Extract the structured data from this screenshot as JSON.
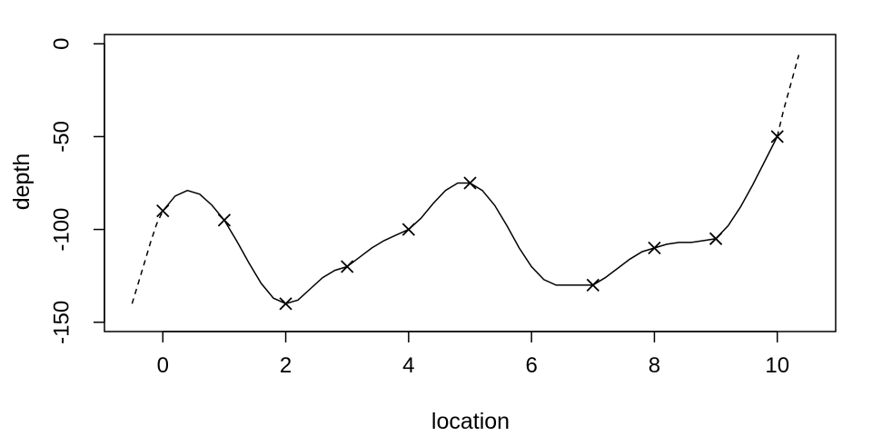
{
  "chart_data": {
    "type": "line",
    "title": "",
    "xlabel": "location",
    "ylabel": "depth",
    "xlim": [
      -0.95,
      10.95
    ],
    "ylim": [
      -155,
      5
    ],
    "x_ticks": [
      0,
      2,
      4,
      6,
      8,
      10
    ],
    "y_ticks": [
      0,
      -50,
      -100,
      -150
    ],
    "x_tick_labels": [
      "0",
      "2",
      "4",
      "6",
      "8",
      "10"
    ],
    "y_tick_labels": [
      "0",
      "-50",
      "-100",
      "-150"
    ],
    "grid": false,
    "legend": "none",
    "series": [
      {
        "style": "points",
        "marker": "x",
        "x": [
          0,
          1,
          2,
          3,
          4,
          5,
          7,
          8,
          9,
          10
        ],
        "y": [
          -90,
          -95,
          -140,
          -120,
          -100,
          -75,
          -130,
          -110,
          -105,
          -50
        ]
      },
      {
        "style": "solid-line",
        "x": [
          0,
          0.2,
          0.4,
          0.6,
          0.8,
          1,
          1.2,
          1.4,
          1.6,
          1.8,
          2,
          2.2,
          2.4,
          2.6,
          2.8,
          3,
          3.2,
          3.4,
          3.6,
          3.8,
          4,
          4.2,
          4.4,
          4.6,
          4.8,
          5,
          5.2,
          5.4,
          5.6,
          5.8,
          6,
          6.2,
          6.4,
          6.6,
          6.8,
          7,
          7.2,
          7.4,
          7.6,
          7.8,
          8,
          8.2,
          8.4,
          8.6,
          8.8,
          9,
          9.2,
          9.4,
          9.6,
          9.8,
          10
        ],
        "y": [
          -90,
          -82,
          -79,
          -81,
          -87,
          -95,
          -106,
          -118,
          -129,
          -137,
          -140,
          -138,
          -132,
          -126,
          -122,
          -120,
          -115,
          -110,
          -106,
          -103,
          -100,
          -94,
          -86,
          -79,
          -75,
          -75,
          -79,
          -87,
          -98,
          -110,
          -120,
          -127,
          -130,
          -130,
          -130,
          -130,
          -126,
          -121,
          -116,
          -112,
          -110,
          -108,
          -107,
          -107,
          -106,
          -105,
          -98,
          -88,
          -76,
          -63,
          -50
        ]
      },
      {
        "style": "dashed-line",
        "segments": [
          {
            "x": [
              -0.5,
              -0.4,
              -0.3,
              -0.2,
              -0.1,
              0
            ],
            "y": [
              -140,
              -129,
              -118,
              -107,
              -97,
              -90
            ]
          },
          {
            "x": [
              10,
              10.1,
              10.2,
              10.35
            ],
            "y": [
              -50,
              -36,
              -24,
              -6
            ]
          }
        ]
      }
    ]
  }
}
